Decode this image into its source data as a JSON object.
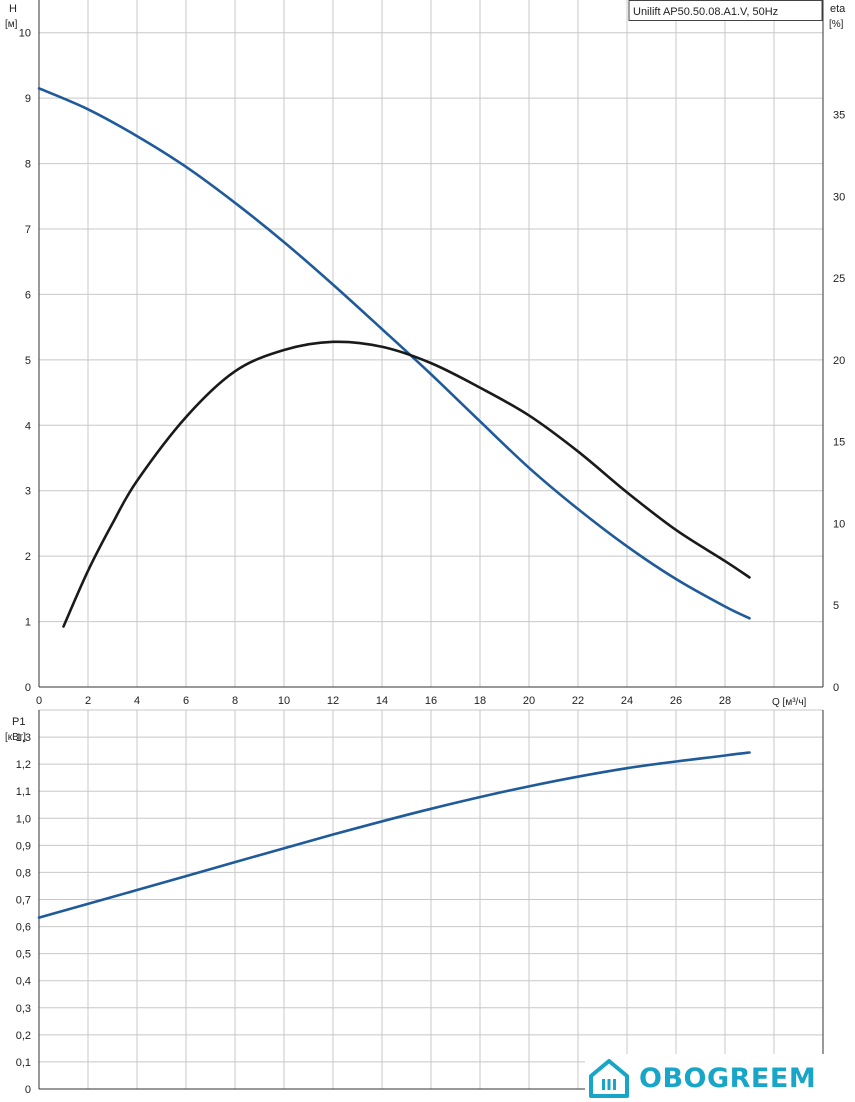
{
  "colors": {
    "blue": "#1f5a9a",
    "black": "#1a1a1a",
    "logo": "#17a6c8"
  },
  "chart_data": [
    {
      "type": "line",
      "title": "Unilift AP50.50.08.A1.V, 50Hz",
      "xlabel": "Q [м³/ч]",
      "ylabel": "H",
      "yunit": "[м]",
      "y2label": "eta",
      "y2unit": "[%]",
      "xlim": [
        0,
        32
      ],
      "ylim": [
        0,
        10.5
      ],
      "y2lim": [
        0,
        42
      ],
      "grid": true,
      "x_ticks": [
        0,
        2,
        4,
        6,
        8,
        10,
        12,
        14,
        16,
        18,
        20,
        22,
        24,
        26,
        28
      ],
      "x_tick_labels": [
        "0",
        "2",
        "4",
        "6",
        "8",
        "10",
        "12",
        "14",
        "16",
        "18",
        "20",
        "22",
        "24",
        "26",
        "28"
      ],
      "y_ticks": [
        0,
        1,
        2,
        3,
        4,
        5,
        6,
        7,
        8,
        9,
        10
      ],
      "y_tick_labels": [
        "0",
        "1",
        "2",
        "3",
        "4",
        "5",
        "6",
        "7",
        "8",
        "9",
        "10"
      ],
      "y2_ticks": [
        0,
        5,
        10,
        15,
        20,
        25,
        30,
        35
      ],
      "y2_tick_labels": [
        "0",
        "5",
        "10",
        "15",
        "20",
        "25",
        "30",
        "35"
      ],
      "series": [
        {
          "axis": "left",
          "color": "blue",
          "x": [
            0,
            2,
            4,
            6,
            8,
            10,
            12,
            14,
            16,
            18,
            20,
            22,
            24,
            26,
            28,
            29
          ],
          "y": [
            9.15,
            8.83,
            8.42,
            7.95,
            7.4,
            6.8,
            6.15,
            5.47,
            4.78,
            4.06,
            3.35,
            2.72,
            2.15,
            1.65,
            1.23,
            1.05
          ]
        },
        {
          "axis": "right",
          "color": "black",
          "x": [
            1,
            2,
            3,
            4,
            6,
            8,
            10,
            12,
            14,
            16,
            18,
            20,
            22,
            24,
            26,
            28,
            29
          ],
          "y": [
            3.7,
            7.1,
            10,
            12.6,
            16.5,
            19.3,
            20.6,
            21.1,
            20.8,
            19.8,
            18.3,
            16.6,
            14.4,
            11.9,
            9.6,
            7.7,
            6.7
          ]
        }
      ]
    },
    {
      "type": "line",
      "ylabel": "P1",
      "yunit": "[кВт]",
      "xlim": [
        0,
        32
      ],
      "ylim": [
        0,
        1.4
      ],
      "grid": true,
      "y_ticks": [
        0,
        0.1,
        0.2,
        0.3,
        0.4,
        0.5,
        0.6,
        0.7,
        0.8,
        0.9,
        1.0,
        1.1,
        1.2,
        1.3
      ],
      "y_tick_labels": [
        "0",
        "0,1",
        "0,2",
        "0,3",
        "0,4",
        "0,5",
        "0,6",
        "0,7",
        "0,8",
        "0,9",
        "1,0",
        "1,1",
        "1,2",
        "1,3"
      ],
      "series": [
        {
          "axis": "left",
          "color": "blue",
          "x": [
            0,
            4,
            8,
            12,
            16,
            20,
            24,
            28,
            29
          ],
          "y": [
            0.633,
            0.735,
            0.838,
            0.94,
            1.035,
            1.118,
            1.185,
            1.232,
            1.243
          ]
        }
      ]
    }
  ],
  "logo": {
    "text": "OBOGREEM"
  }
}
